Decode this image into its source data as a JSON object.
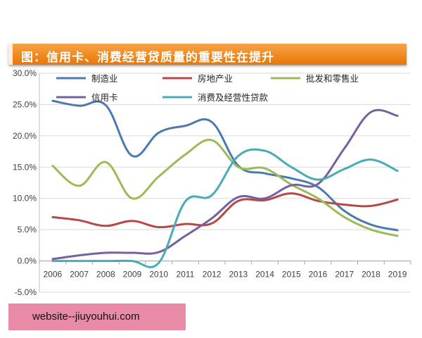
{
  "chart_data": {
    "type": "line",
    "title": "图：信用卡、消费经营贷质量的重要性在提升",
    "xlabel": "",
    "ylabel": "",
    "x": [
      "2006",
      "2007",
      "2008",
      "2009",
      "2010",
      "2011",
      "2012",
      "2013",
      "2014",
      "2015",
      "2016",
      "2017",
      "2018",
      "2019"
    ],
    "y_ticks": [
      "30.0%",
      "25.0%",
      "20.0%",
      "15.0%",
      "10.0%",
      "5.0%",
      "0.0%",
      "-5.0%"
    ],
    "ylim": [
      -5,
      30
    ],
    "unit": "%",
    "grid": true,
    "legend_position": "top",
    "series": [
      {
        "name": "制造业",
        "color": "#4a7ab0",
        "values": [
          25.6,
          24.8,
          24.9,
          16.8,
          20.5,
          21.6,
          22.2,
          15.2,
          14.0,
          13.2,
          11.8,
          8.0,
          5.8,
          4.9
        ]
      },
      {
        "name": "房地产业",
        "color": "#b84845",
        "values": [
          7.0,
          6.5,
          5.6,
          6.4,
          5.4,
          5.9,
          6.0,
          9.6,
          9.7,
          10.8,
          9.6,
          9.0,
          8.8,
          9.8
        ]
      },
      {
        "name": "批发和零售业",
        "color": "#9bbb59",
        "values": [
          15.2,
          12.0,
          15.8,
          10.0,
          13.5,
          17.0,
          19.3,
          15.0,
          14.8,
          12.2,
          10.0,
          7.0,
          5.0,
          4.0
        ]
      },
      {
        "name": "信用卡",
        "color": "#7560a0",
        "values": [
          0.3,
          0.9,
          1.3,
          1.3,
          1.4,
          4.0,
          6.8,
          10.2,
          10.0,
          12.1,
          12.3,
          18.0,
          23.8,
          23.2
        ]
      },
      {
        "name": "消费及经营性贷款",
        "color": "#4aabb8",
        "values": [
          0.0,
          0.0,
          0.0,
          0.0,
          -0.3,
          9.5,
          10.5,
          16.8,
          17.6,
          15.0,
          13.0,
          14.7,
          16.2,
          14.4
        ]
      }
    ]
  },
  "watermark": {
    "text": "website--jiuyouhui.com"
  }
}
